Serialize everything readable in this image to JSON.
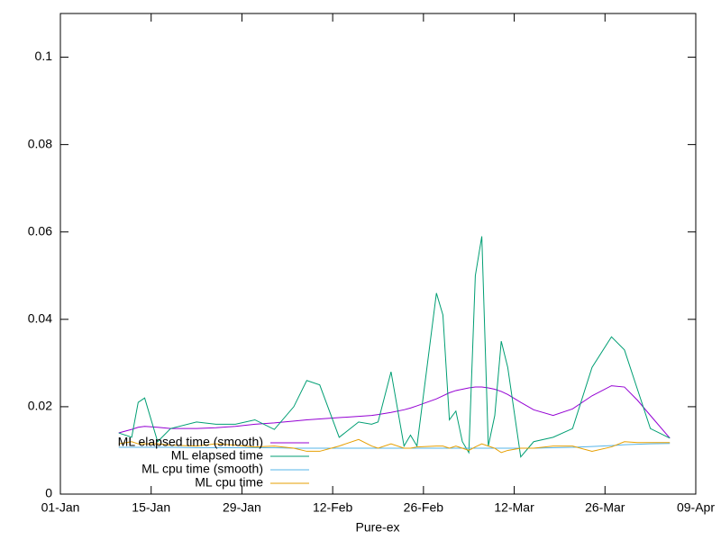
{
  "chart_data": {
    "type": "line",
    "xlabel": "Pure-ex",
    "x": [
      "10-Jan",
      "12-Jan",
      "13-Jan",
      "14-Jan",
      "16-Jan",
      "18-Jan",
      "22-Jan",
      "25-Jan",
      "28-Jan",
      "31-Jan",
      "03-Feb",
      "06-Feb",
      "08-Feb",
      "10-Feb",
      "13-Feb",
      "16-Feb",
      "18-Feb",
      "19-Feb",
      "21-Feb",
      "23-Feb",
      "24-Feb",
      "25-Feb",
      "28-Feb",
      "01-Mar",
      "02-Mar",
      "03-Mar",
      "04-Mar",
      "05-Mar",
      "06-Mar",
      "07-Mar",
      "08-Mar",
      "09-Mar",
      "10-Mar",
      "11-Mar",
      "13-Mar",
      "15-Mar",
      "18-Mar",
      "21-Mar",
      "24-Mar",
      "27-Mar",
      "29-Mar",
      "31-Mar",
      "02-Apr",
      "05-Apr"
    ],
    "series": [
      {
        "name": "ML elapsed time (smooth)",
        "color": "#9400d3",
        "values": [
          0.014,
          0.0148,
          0.0153,
          0.0155,
          0.0153,
          0.015,
          0.015,
          0.0152,
          0.0155,
          0.016,
          0.0163,
          0.0167,
          0.017,
          0.0172,
          0.0175,
          0.0178,
          0.018,
          0.0182,
          0.0187,
          0.0193,
          0.0197,
          0.0202,
          0.0218,
          0.0225,
          0.0232,
          0.0237,
          0.024,
          0.0243,
          0.0245,
          0.0245,
          0.0243,
          0.024,
          0.0235,
          0.0228,
          0.021,
          0.0193,
          0.018,
          0.0195,
          0.0225,
          0.0248,
          0.0245,
          0.0215,
          0.018,
          0.0128
        ]
      },
      {
        "name": "ML elapsed time",
        "color": "#009e73",
        "values": [
          0.014,
          0.013,
          0.021,
          0.022,
          0.012,
          0.015,
          0.0165,
          0.016,
          0.016,
          0.017,
          0.0148,
          0.02,
          0.026,
          0.025,
          0.013,
          0.0165,
          0.016,
          0.0165,
          0.028,
          0.011,
          0.0135,
          0.011,
          0.046,
          0.041,
          0.017,
          0.019,
          0.012,
          0.0095,
          0.05,
          0.059,
          0.011,
          0.018,
          0.035,
          0.029,
          0.0085,
          0.012,
          0.013,
          0.015,
          0.029,
          0.036,
          0.033,
          0.024,
          0.015,
          0.0128
        ]
      },
      {
        "name": "ML cpu time (smooth)",
        "color": "#56b4e9",
        "values": [
          0.0107,
          0.0107,
          0.0107,
          0.0107,
          0.0107,
          0.0107,
          0.0106,
          0.0106,
          0.0106,
          0.0106,
          0.0106,
          0.0105,
          0.0105,
          0.0105,
          0.0105,
          0.0105,
          0.0105,
          0.0105,
          0.0105,
          0.0105,
          0.0105,
          0.0105,
          0.0105,
          0.0105,
          0.0105,
          0.0105,
          0.0105,
          0.0105,
          0.0105,
          0.0105,
          0.0105,
          0.0105,
          0.0105,
          0.0105,
          0.0105,
          0.0105,
          0.0106,
          0.0107,
          0.0109,
          0.0111,
          0.0113,
          0.0114,
          0.0115,
          0.0116
        ]
      },
      {
        "name": "ML cpu time",
        "color": "#e69f00",
        "values": [
          0.0115,
          0.012,
          0.0115,
          0.0115,
          0.0115,
          0.0112,
          0.011,
          0.0115,
          0.0112,
          0.0108,
          0.011,
          0.0105,
          0.0098,
          0.0098,
          0.011,
          0.0125,
          0.011,
          0.0105,
          0.0115,
          0.0105,
          0.0105,
          0.0108,
          0.011,
          0.011,
          0.0105,
          0.011,
          0.0105,
          0.01,
          0.0108,
          0.0115,
          0.011,
          0.0105,
          0.0095,
          0.01,
          0.0105,
          0.0105,
          0.011,
          0.011,
          0.0098,
          0.0108,
          0.012,
          0.0118,
          0.0118,
          0.0118
        ]
      }
    ],
    "xlim": [
      "01-Jan",
      "09-Apr"
    ],
    "xticks": [
      "01-Jan",
      "15-Jan",
      "29-Jan",
      "12-Feb",
      "26-Feb",
      "12-Mar",
      "26-Mar",
      "09-Apr"
    ],
    "ylim": [
      0,
      0.11
    ],
    "yticks": [
      0,
      0.02,
      0.04,
      0.06,
      0.08,
      0.1
    ],
    "legend": "bottom-left"
  }
}
